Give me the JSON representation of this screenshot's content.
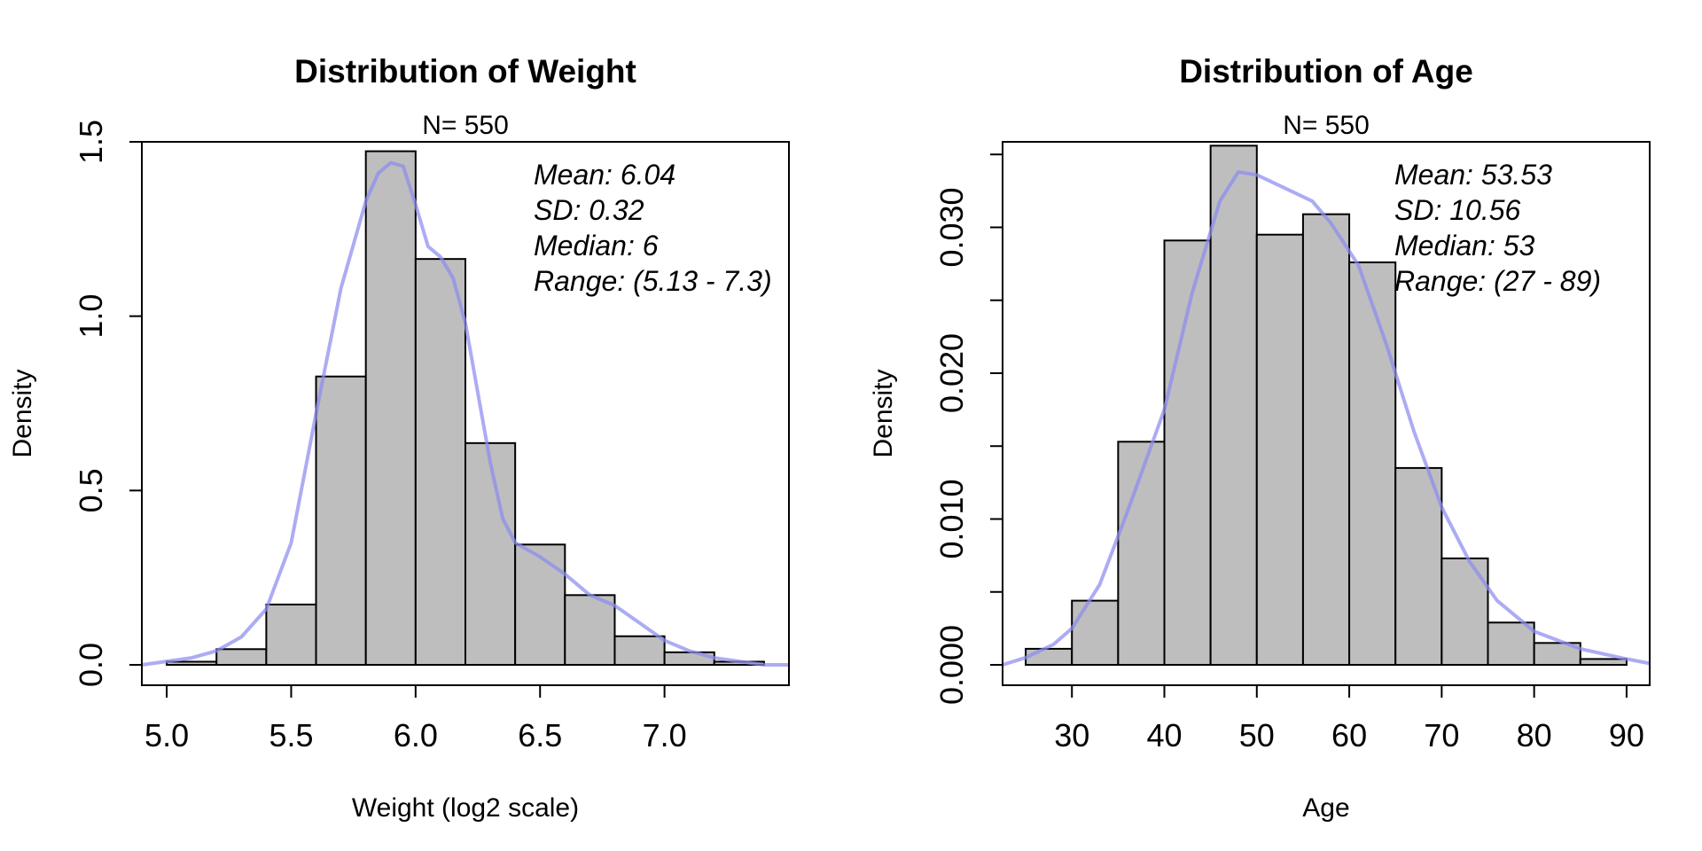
{
  "chart_data": [
    {
      "type": "bar",
      "title": "Distribution of Weight",
      "subtitle": "N= 550",
      "xlabel": "Weight (log2 scale)",
      "ylabel": "Density",
      "xlim": [
        4.9,
        7.5
      ],
      "ylim": [
        0,
        1.5
      ],
      "x_ticks": [
        "5.0",
        "5.5",
        "6.0",
        "6.5",
        "7.0"
      ],
      "y_ticks": [
        "0.0",
        "0.5",
        "1.0",
        "1.5"
      ],
      "bin_edges": [
        5.0,
        5.2,
        5.4,
        5.6,
        5.8,
        6.0,
        6.2,
        6.4,
        6.6,
        6.8,
        7.0,
        7.2,
        7.4
      ],
      "values": [
        0.009,
        0.045,
        0.173,
        0.827,
        1.473,
        1.164,
        0.636,
        0.345,
        0.2,
        0.082,
        0.036,
        0.009
      ],
      "density_curve": {
        "color": "#8c8cf0",
        "x": [
          4.9,
          5.0,
          5.1,
          5.2,
          5.3,
          5.4,
          5.5,
          5.6,
          5.7,
          5.8,
          5.85,
          5.9,
          5.95,
          6.0,
          6.05,
          6.1,
          6.15,
          6.2,
          6.3,
          6.35,
          6.4,
          6.5,
          6.6,
          6.7,
          6.8,
          6.9,
          7.0,
          7.1,
          7.2,
          7.3,
          7.4,
          7.5
        ],
        "y": [
          0.0,
          0.01,
          0.02,
          0.04,
          0.08,
          0.16,
          0.35,
          0.72,
          1.08,
          1.33,
          1.41,
          1.44,
          1.43,
          1.32,
          1.2,
          1.17,
          1.11,
          0.98,
          0.58,
          0.42,
          0.35,
          0.31,
          0.26,
          0.2,
          0.17,
          0.12,
          0.07,
          0.04,
          0.02,
          0.01,
          0.0,
          0.0
        ]
      },
      "stats": [
        "Mean: 6.04",
        "SD: 0.32",
        "Median: 6",
        "Range: (5.13 - 7.3)"
      ]
    },
    {
      "type": "bar",
      "title": "Distribution of Age",
      "subtitle": "N= 550",
      "xlabel": "Age",
      "ylabel": "Density",
      "xlim": [
        22.5,
        92.5
      ],
      "ylim": [
        0,
        0.0355
      ],
      "x_ticks": [
        "30",
        "40",
        "50",
        "60",
        "70",
        "80",
        "90"
      ],
      "y_ticks": [
        "0.000",
        "0.010",
        "0.020",
        "0.030"
      ],
      "bin_edges": [
        25,
        30,
        35,
        40,
        45,
        50,
        55,
        60,
        65,
        70,
        75,
        80,
        85,
        90
      ],
      "values": [
        0.0011,
        0.0044,
        0.0153,
        0.0291,
        0.0356,
        0.0295,
        0.0309,
        0.0276,
        0.0135,
        0.0073,
        0.0029,
        0.0015,
        0.0004
      ],
      "density_curve": {
        "color": "#8c8cf0",
        "x": [
          22.5,
          25,
          28,
          30,
          33,
          36,
          40,
          43,
          46,
          48,
          50,
          53,
          56,
          58,
          61,
          64,
          67,
          70,
          73,
          76,
          80,
          85,
          90,
          92.5
        ],
        "y": [
          0.0,
          0.0005,
          0.0014,
          0.0025,
          0.0055,
          0.0105,
          0.0175,
          0.0255,
          0.0318,
          0.0338,
          0.0336,
          0.0327,
          0.0318,
          0.0303,
          0.0274,
          0.022,
          0.016,
          0.0108,
          0.0071,
          0.0044,
          0.0023,
          0.0011,
          0.0004,
          0.0001
        ]
      },
      "stats": [
        "Mean: 53.53",
        "SD: 10.56",
        "Median: 53",
        "Range: (27 - 89)"
      ]
    }
  ]
}
